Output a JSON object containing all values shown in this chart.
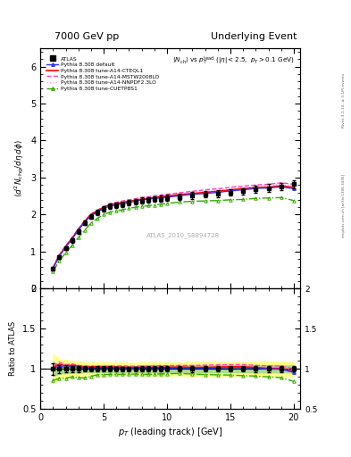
{
  "title_left": "7000 GeV pp",
  "title_right": "Underlying Event",
  "inner_title": "<N_{ch}> vs p_{T}^{lead} (|eta| < 2.5, p_{T} > 0.1 GeV)",
  "xlabel": "p_{T} (leading track) [GeV]",
  "ylabel_main": "<d^{2} N_{chg}/detadphi>",
  "ylabel_ratio": "Ratio to ATLAS",
  "watermark": "ATLAS_2010_S8894728",
  "rivet_text": "Rivet 3.1.10, ≥ 3.1M events",
  "arxiv_text": "[arXiv:1306.3436]",
  "mcplots_text": "mcplots.cern.ch",
  "atlas_x": [
    1.0,
    1.5,
    2.0,
    2.5,
    3.0,
    3.5,
    4.0,
    4.5,
    5.0,
    5.5,
    6.0,
    6.5,
    7.0,
    7.5,
    8.0,
    8.5,
    9.0,
    9.5,
    10.0,
    11.0,
    12.0,
    13.0,
    14.0,
    15.0,
    16.0,
    17.0,
    18.0,
    19.0,
    20.0
  ],
  "atlas_y": [
    0.55,
    0.85,
    1.1,
    1.3,
    1.55,
    1.78,
    1.95,
    2.05,
    2.15,
    2.22,
    2.25,
    2.28,
    2.32,
    2.35,
    2.38,
    2.4,
    2.42,
    2.43,
    2.45,
    2.48,
    2.52,
    2.55,
    2.57,
    2.6,
    2.63,
    2.68,
    2.72,
    2.76,
    2.82
  ],
  "atlas_yerr": [
    0.04,
    0.04,
    0.05,
    0.05,
    0.06,
    0.06,
    0.06,
    0.07,
    0.07,
    0.07,
    0.07,
    0.07,
    0.07,
    0.07,
    0.08,
    0.08,
    0.08,
    0.08,
    0.08,
    0.08,
    0.09,
    0.09,
    0.09,
    0.09,
    0.09,
    0.1,
    0.1,
    0.1,
    0.1
  ],
  "default_x": [
    1.0,
    1.5,
    2.0,
    2.5,
    3.0,
    3.5,
    4.0,
    4.5,
    5.0,
    5.5,
    6.0,
    6.5,
    7.0,
    7.5,
    8.0,
    8.5,
    9.0,
    9.5,
    10.0,
    11.0,
    12.0,
    13.0,
    14.0,
    15.0,
    16.0,
    17.0,
    18.0,
    19.0,
    20.0
  ],
  "default_y": [
    0.55,
    0.88,
    1.12,
    1.34,
    1.58,
    1.8,
    1.97,
    2.07,
    2.17,
    2.23,
    2.27,
    2.3,
    2.33,
    2.36,
    2.4,
    2.42,
    2.44,
    2.45,
    2.47,
    2.51,
    2.55,
    2.57,
    2.6,
    2.64,
    2.67,
    2.71,
    2.72,
    2.75,
    2.7
  ],
  "cteq_x": [
    1.0,
    1.5,
    2.0,
    2.5,
    3.0,
    3.5,
    4.0,
    4.5,
    5.0,
    5.5,
    6.0,
    6.5,
    7.0,
    7.5,
    8.0,
    8.5,
    9.0,
    9.5,
    10.0,
    11.0,
    12.0,
    13.0,
    14.0,
    15.0,
    16.0,
    17.0,
    18.0,
    19.0,
    20.0
  ],
  "cteq_y": [
    0.56,
    0.9,
    1.14,
    1.36,
    1.6,
    1.82,
    2.0,
    2.1,
    2.2,
    2.27,
    2.3,
    2.33,
    2.36,
    2.39,
    2.42,
    2.44,
    2.46,
    2.48,
    2.5,
    2.54,
    2.57,
    2.6,
    2.63,
    2.67,
    2.7,
    2.73,
    2.74,
    2.78,
    2.73
  ],
  "mstw_x": [
    1.0,
    1.5,
    2.0,
    2.5,
    3.0,
    3.5,
    4.0,
    4.5,
    5.0,
    5.5,
    6.0,
    6.5,
    7.0,
    7.5,
    8.0,
    8.5,
    9.0,
    9.5,
    10.0,
    11.0,
    12.0,
    13.0,
    14.0,
    15.0,
    16.0,
    17.0,
    18.0,
    19.0,
    20.0
  ],
  "mstw_y": [
    0.57,
    0.92,
    1.16,
    1.38,
    1.62,
    1.84,
    2.02,
    2.12,
    2.22,
    2.3,
    2.33,
    2.37,
    2.4,
    2.43,
    2.46,
    2.48,
    2.51,
    2.53,
    2.55,
    2.59,
    2.63,
    2.67,
    2.7,
    2.74,
    2.77,
    2.8,
    2.82,
    2.86,
    2.82
  ],
  "nnpdf_x": [
    1.0,
    1.5,
    2.0,
    2.5,
    3.0,
    3.5,
    4.0,
    4.5,
    5.0,
    5.5,
    6.0,
    6.5,
    7.0,
    7.5,
    8.0,
    8.5,
    9.0,
    9.5,
    10.0,
    11.0,
    12.0,
    13.0,
    14.0,
    15.0,
    16.0,
    17.0,
    18.0,
    19.0,
    20.0
  ],
  "nnpdf_y": [
    0.56,
    0.9,
    1.14,
    1.36,
    1.6,
    1.82,
    2.0,
    2.1,
    2.2,
    2.27,
    2.3,
    2.34,
    2.37,
    2.4,
    2.43,
    2.45,
    2.47,
    2.5,
    2.52,
    2.56,
    2.6,
    2.63,
    2.66,
    2.7,
    2.73,
    2.76,
    2.78,
    2.82,
    2.78
  ],
  "cuetp_x": [
    1.0,
    1.5,
    2.0,
    2.5,
    3.0,
    3.5,
    4.0,
    4.5,
    5.0,
    5.5,
    6.0,
    6.5,
    7.0,
    7.5,
    8.0,
    8.5,
    9.0,
    9.5,
    10.0,
    11.0,
    12.0,
    13.0,
    14.0,
    15.0,
    16.0,
    17.0,
    18.0,
    19.0,
    20.0
  ],
  "cuetp_y": [
    0.47,
    0.75,
    0.97,
    1.17,
    1.38,
    1.58,
    1.77,
    1.9,
    2.0,
    2.07,
    2.1,
    2.13,
    2.17,
    2.2,
    2.22,
    2.24,
    2.26,
    2.28,
    2.3,
    2.34,
    2.36,
    2.37,
    2.38,
    2.4,
    2.41,
    2.44,
    2.45,
    2.46,
    2.38
  ],
  "ylim_main": [
    0.0,
    6.5
  ],
  "ylim_ratio": [
    0.5,
    2.0
  ],
  "xlim": [
    0.5,
    20.5
  ],
  "color_default": "#3333ff",
  "color_cteq": "#ff0000",
  "color_mstw": "#ff44bb",
  "color_nnpdf": "#ff99cc",
  "color_cuetp": "#33aa00",
  "ratio_band_yellow": "#ffff88",
  "ratio_band_green": "#aadd88"
}
